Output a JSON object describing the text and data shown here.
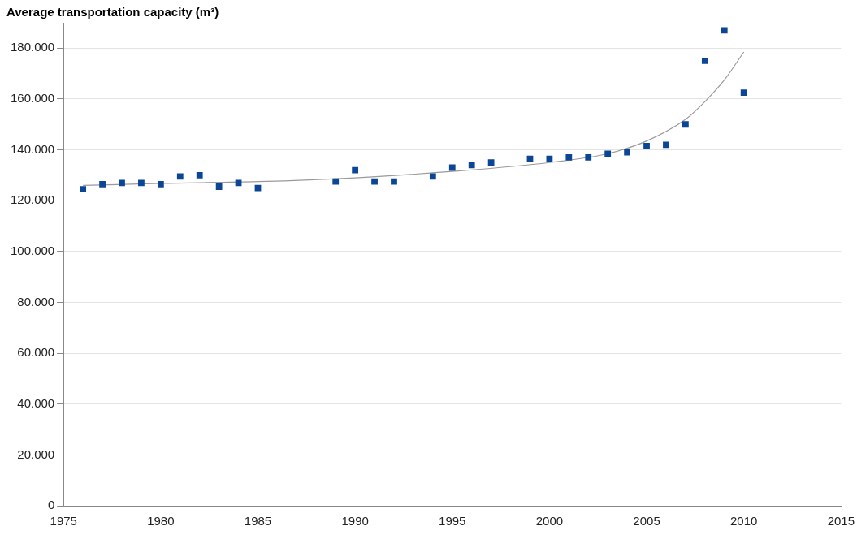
{
  "chart_data": {
    "type": "scatter",
    "ylabel": "Average transportation capacity (m³)",
    "x": [
      1976,
      1977,
      1978,
      1979,
      1980,
      1981,
      1982,
      1983,
      1984,
      1985,
      1989,
      1990,
      1991,
      1992,
      1994,
      1995,
      1996,
      1997,
      1999,
      2000,
      2001,
      2002,
      2003,
      2004,
      2005,
      2006,
      2007,
      2008,
      2009,
      2010
    ],
    "series": [
      {
        "color": "#0a4596",
        "marker": "square",
        "values": [
          124500,
          126500,
          127000,
          127000,
          126500,
          129500,
          130000,
          125500,
          127000,
          125000,
          127500,
          132000,
          127500,
          127500,
          129500,
          133000,
          134000,
          135000,
          136500,
          136500,
          137000,
          137000,
          138500,
          139000,
          141500,
          142000,
          150000,
          175000,
          187000,
          162500
        ]
      },
      {
        "type": "line",
        "color": "#9a9a9a",
        "marker": "none",
        "line_style": "solid",
        "x": [
          1976,
          1980,
          1985,
          1990,
          1995,
          2000,
          2003,
          2005,
          2007,
          2008,
          2009,
          2010
        ],
        "values": [
          126000,
          126800,
          127500,
          129000,
          131500,
          135000,
          138500,
          143500,
          152000,
          159000,
          167500,
          178500
        ]
      }
    ],
    "xlim": [
      1975,
      2015
    ],
    "xticks": [
      1975,
      1980,
      1985,
      1990,
      1995,
      2000,
      2005,
      2010,
      2015
    ],
    "ylim": [
      0,
      190000
    ],
    "yticks": [
      {
        "value": 0,
        "label": "0"
      },
      {
        "value": 20000,
        "label": "20.000"
      },
      {
        "value": 40000,
        "label": "40.000"
      },
      {
        "value": 60000,
        "label": "60.000"
      },
      {
        "value": 80000,
        "label": "80.000"
      },
      {
        "value": 100000,
        "label": "100.000"
      },
      {
        "value": 120000,
        "label": "120.000"
      },
      {
        "value": 140000,
        "label": "140.000"
      },
      {
        "value": 160000,
        "label": "160.000"
      },
      {
        "value": 180000,
        "label": "180.000"
      }
    ],
    "grid": "y",
    "legend": false
  }
}
